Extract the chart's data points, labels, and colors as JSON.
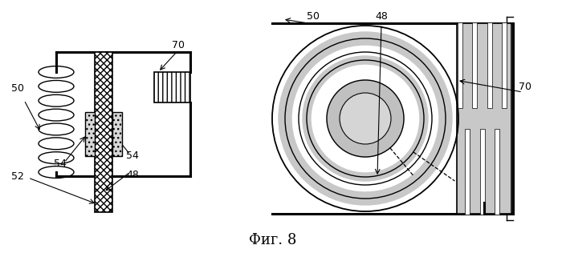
{
  "bg_color": "#ffffff",
  "fig_label": "Фиг. 8",
  "fig_label_fontsize": 13
}
